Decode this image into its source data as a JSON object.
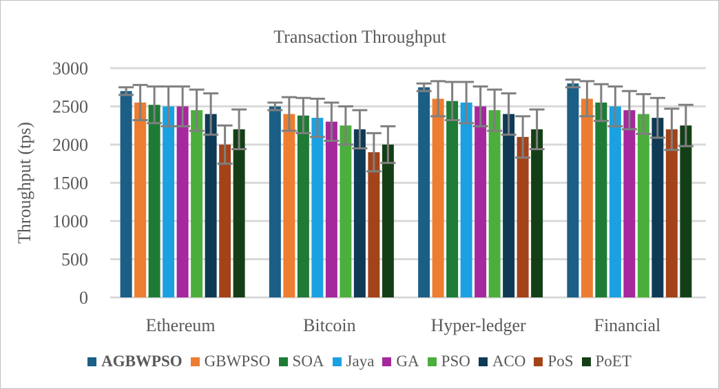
{
  "chart_data": {
    "type": "bar",
    "title": "Transaction Throughput",
    "xlabel": "",
    "ylabel": "Throughput (tps)",
    "ylim": [
      0,
      3000
    ],
    "yticks": [
      0,
      500,
      1000,
      1500,
      2000,
      2500,
      3000
    ],
    "grid": true,
    "legend_position": "bottom",
    "categories": [
      "Ethereum",
      "Bitcoin",
      "Hyper-ledger",
      "Financial"
    ],
    "series": [
      {
        "name": "AGBWPSO",
        "color": "#1b5e86",
        "bold": true,
        "values": [
          2700,
          2500,
          2750,
          2800
        ],
        "errors": [
          50,
          50,
          50,
          50
        ]
      },
      {
        "name": "GBWPSO",
        "color": "#ed7d31",
        "bold": false,
        "values": [
          2550,
          2400,
          2600,
          2600
        ],
        "errors": [
          230,
          220,
          230,
          230
        ]
      },
      {
        "name": "SOA",
        "color": "#1e7b35",
        "bold": false,
        "values": [
          2520,
          2380,
          2570,
          2550
        ],
        "errors": [
          240,
          230,
          250,
          240
        ]
      },
      {
        "name": "Jaya",
        "color": "#1ba1e2",
        "bold": false,
        "values": [
          2500,
          2350,
          2550,
          2500
        ],
        "errors": [
          260,
          250,
          270,
          260
        ]
      },
      {
        "name": "GA",
        "color": "#a5289c",
        "bold": false,
        "values": [
          2500,
          2300,
          2500,
          2450
        ],
        "errors": [
          260,
          250,
          260,
          250
        ]
      },
      {
        "name": "PSO",
        "color": "#4cae3c",
        "bold": false,
        "values": [
          2450,
          2250,
          2450,
          2400
        ],
        "errors": [
          270,
          250,
          270,
          260
        ]
      },
      {
        "name": "ACO",
        "color": "#0e3a55",
        "bold": false,
        "values": [
          2400,
          2200,
          2400,
          2350
        ],
        "errors": [
          270,
          250,
          270,
          260
        ]
      },
      {
        "name": "PoS",
        "color": "#a3431a",
        "bold": false,
        "values": [
          2000,
          1900,
          2100,
          2200
        ],
        "errors": [
          250,
          250,
          270,
          270
        ]
      },
      {
        "name": "PoET",
        "color": "#143f16",
        "bold": false,
        "values": [
          2200,
          2000,
          2200,
          2250
        ],
        "errors": [
          260,
          240,
          260,
          270
        ]
      }
    ]
  }
}
